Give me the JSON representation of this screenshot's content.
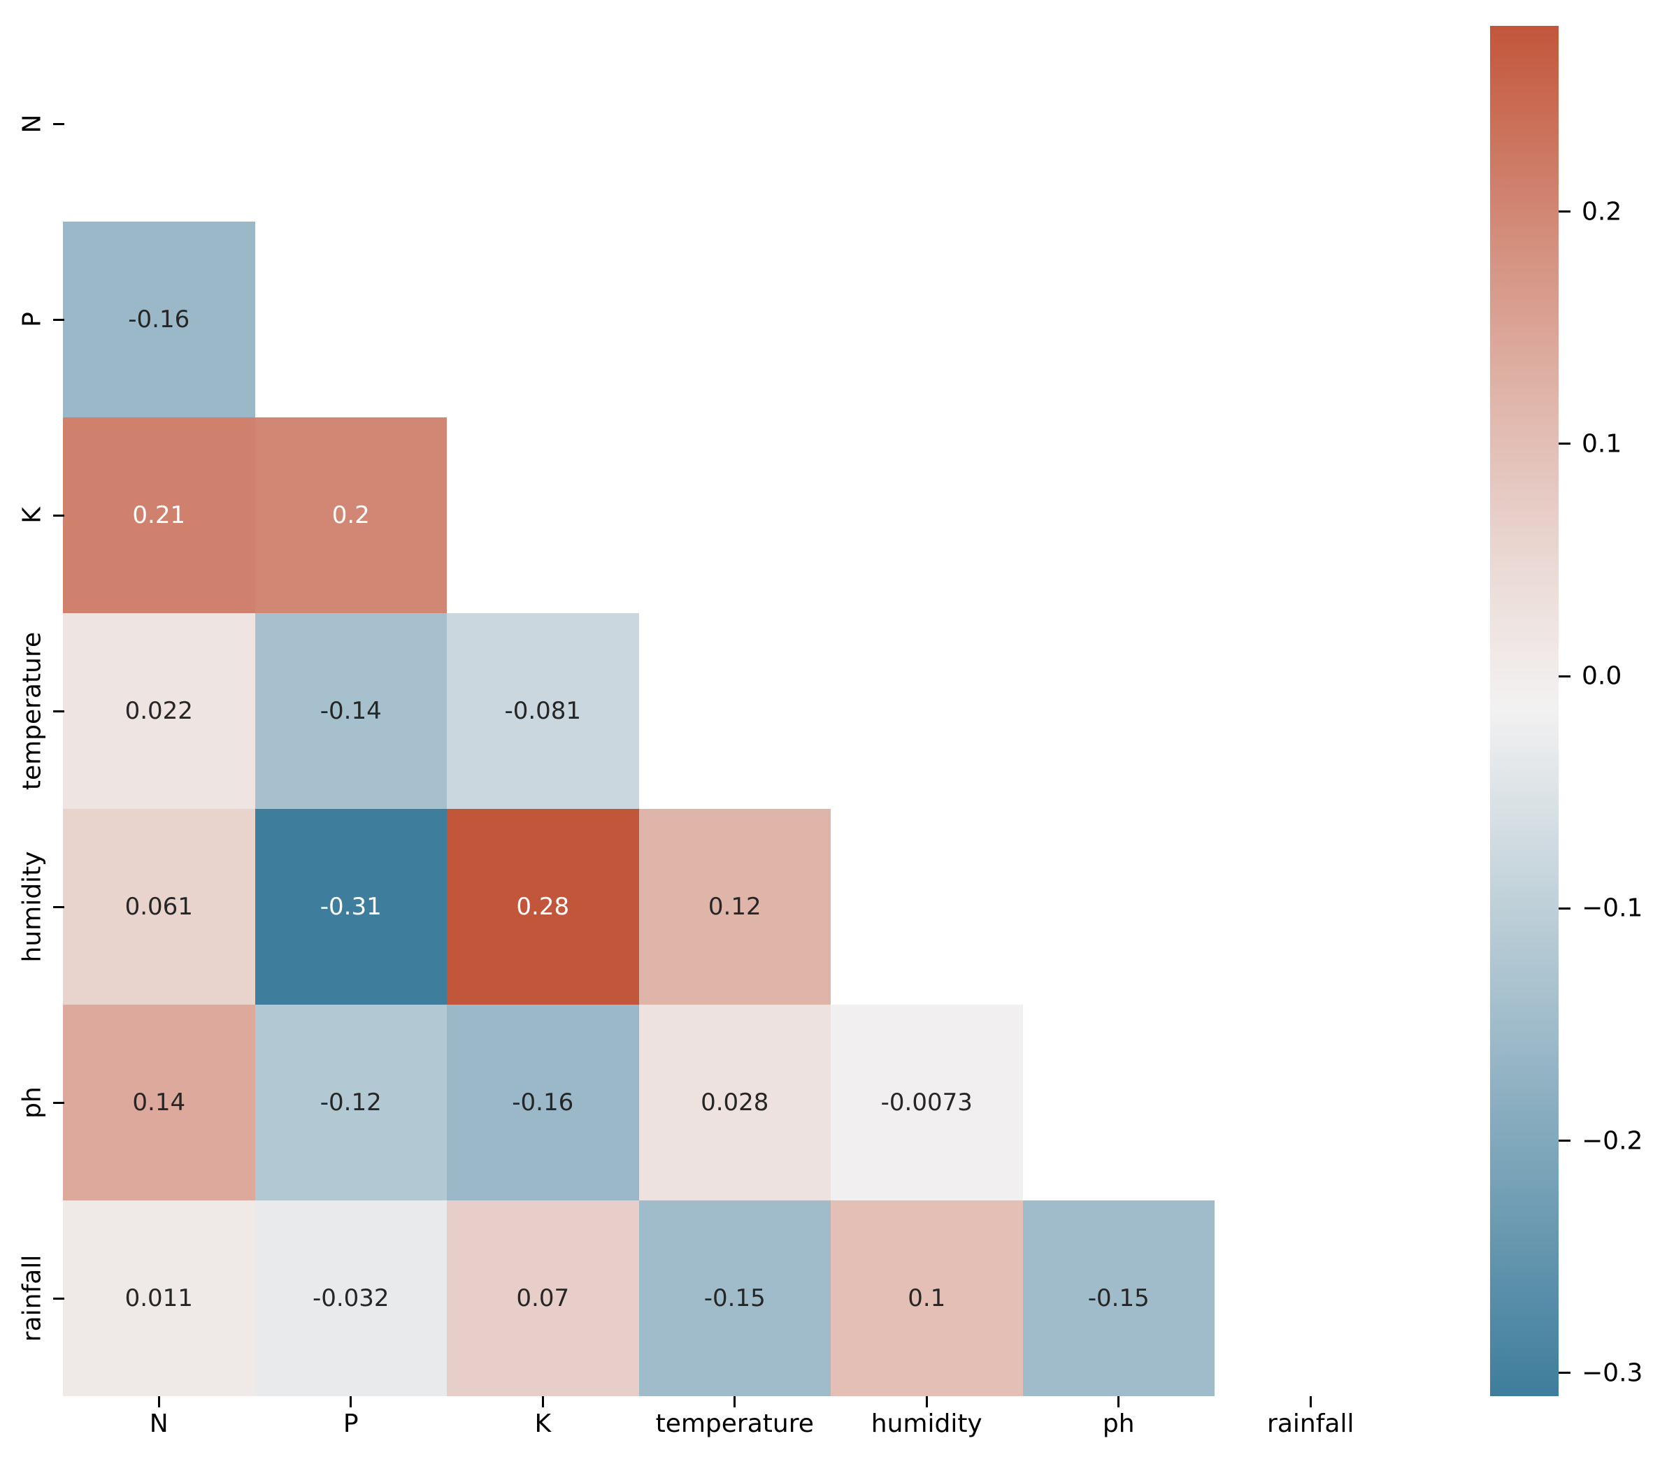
{
  "chart_data": {
    "type": "heatmap",
    "subtype": "correlation-matrix-lower-triangle",
    "title": "",
    "variables": [
      "N",
      "P",
      "K",
      "temperature",
      "humidity",
      "ph",
      "rainfall"
    ],
    "x_tick_labels": [
      "N",
      "P",
      "K",
      "temperature",
      "humidity",
      "ph",
      "rainfall"
    ],
    "y_tick_labels": [
      "N",
      "P",
      "K",
      "temperature",
      "humidity",
      "ph",
      "rainfall"
    ],
    "mask": "upper-triangle-including-diagonal-hidden",
    "grid": false,
    "legend_position": "right-colorbar",
    "matrix": [
      [
        null,
        null,
        null,
        null,
        null,
        null,
        null
      ],
      [
        -0.16,
        null,
        null,
        null,
        null,
        null,
        null
      ],
      [
        0.21,
        0.2,
        null,
        null,
        null,
        null,
        null
      ],
      [
        0.022,
        -0.14,
        -0.081,
        null,
        null,
        null,
        null
      ],
      [
        0.061,
        -0.31,
        0.28,
        0.12,
        null,
        null,
        null
      ],
      [
        0.14,
        -0.12,
        -0.16,
        0.028,
        -0.0073,
        null,
        null
      ],
      [
        0.011,
        -0.032,
        0.07,
        -0.15,
        0.1,
        -0.15,
        null
      ]
    ],
    "annotations": [
      [
        "",
        "",
        "",
        "",
        "",
        "",
        ""
      ],
      [
        "-0.16",
        "",
        "",
        "",
        "",
        "",
        ""
      ],
      [
        "0.21",
        "0.2",
        "",
        "",
        "",
        "",
        ""
      ],
      [
        "0.022",
        "-0.14",
        "-0.081",
        "",
        "",
        "",
        ""
      ],
      [
        "0.061",
        "-0.31",
        "0.28",
        "0.12",
        "",
        "",
        ""
      ],
      [
        "0.14",
        "-0.12",
        "-0.16",
        "0.028",
        "-0.0073",
        "",
        ""
      ],
      [
        "0.011",
        "-0.032",
        "0.07",
        "-0.15",
        "0.1",
        "-0.15",
        ""
      ]
    ],
    "colorscale": {
      "vmin": -0.31,
      "vmax": 0.28,
      "min_color": "#3e7d9c",
      "center_color": "#f2f1f1",
      "max_color": "#c2563a",
      "dark_text_color": "#262626",
      "light_text_color": "#ffffff"
    },
    "colorbar": {
      "tick_labels": [
        "0.2",
        "0.1",
        "0.0",
        "−0.1",
        "−0.2",
        "−0.3"
      ],
      "tick_values": [
        0.2,
        0.1,
        0.0,
        -0.1,
        -0.2,
        -0.3
      ]
    },
    "axis_text_color": "#000000",
    "background_color": "#ffffff"
  }
}
